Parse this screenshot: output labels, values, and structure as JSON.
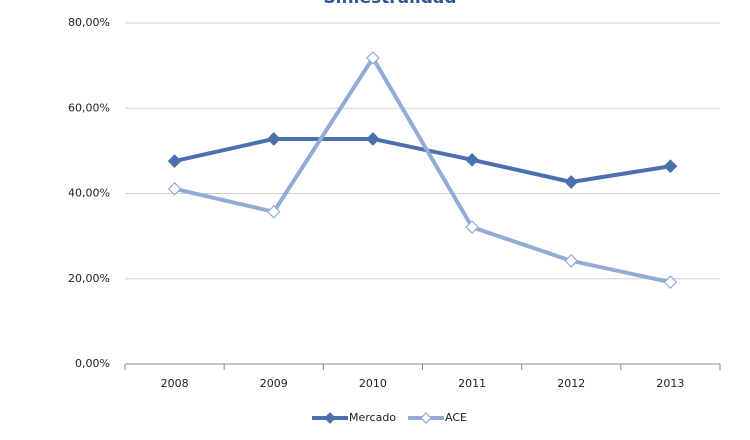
{
  "chart_data": {
    "type": "line",
    "title": "Siniestralidad",
    "categories": [
      "2008",
      "2009",
      "2010",
      "2011",
      "2012",
      "2013"
    ],
    "series": [
      {
        "name": "Mercado",
        "color": "#4a71ad",
        "marker_fill": "#4a71ad",
        "values": [
          47.6,
          52.8,
          52.8,
          47.9,
          42.7,
          46.4
        ]
      },
      {
        "name": "ACE",
        "color": "#93acd5",
        "marker_fill": "#ffffff",
        "values": [
          41.1,
          35.7,
          71.8,
          32.1,
          24.2,
          19.2
        ]
      }
    ],
    "ylim": [
      0,
      80
    ],
    "yticks": [
      {
        "value": 0,
        "label": "0,00%"
      },
      {
        "value": 20,
        "label": "20,00%"
      },
      {
        "value": 40,
        "label": "40,00%"
      },
      {
        "value": 60,
        "label": "60,00%"
      },
      {
        "value": 80,
        "label": "80,00%"
      }
    ],
    "grid": true,
    "legend": "bottom"
  }
}
